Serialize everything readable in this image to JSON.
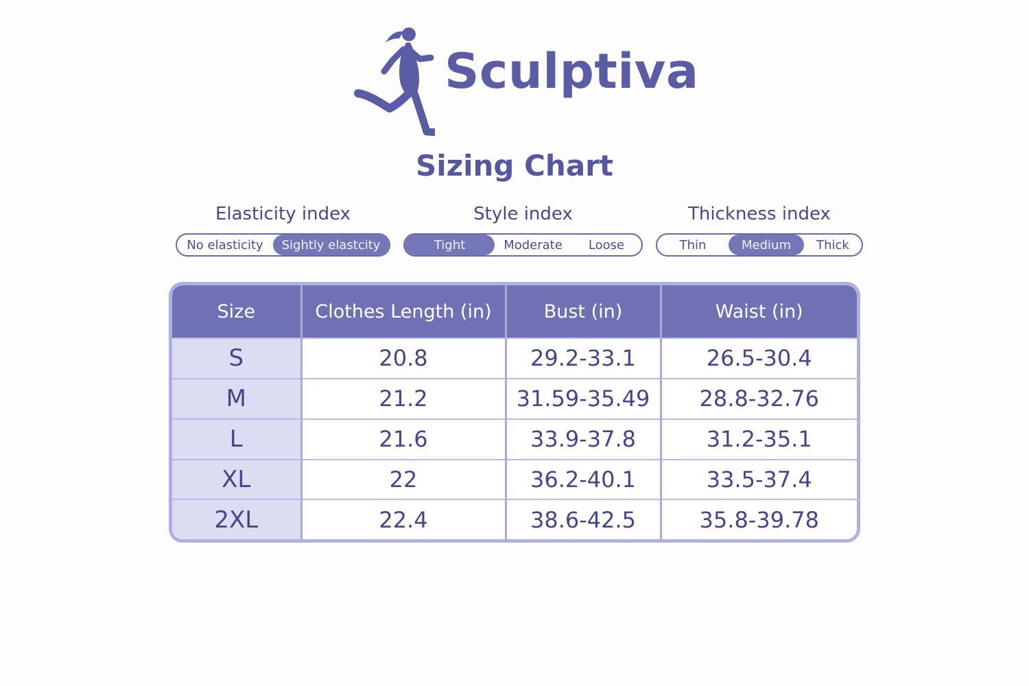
{
  "brand": {
    "name": "Sculptiva",
    "logo_icon": "running-woman-icon",
    "color": "#5a5ca6"
  },
  "chart_title": "Sizing Chart",
  "indices": [
    {
      "title": "Elasticity index",
      "options": [
        "No elasticity",
        "Sightly elastcity"
      ],
      "selected": "Sightly elastcity"
    },
    {
      "title": "Style index",
      "options": [
        "Tight",
        "Moderate",
        "Loose"
      ],
      "selected": "Tight"
    },
    {
      "title": "Thickness index",
      "options": [
        "Thin",
        "Medium",
        "Thick"
      ],
      "selected": "Medium"
    }
  ],
  "table": {
    "headers": [
      "Size",
      "Clothes Length (in)",
      "Bust (in)",
      "Waist (in)"
    ],
    "rows": [
      [
        "S",
        "20.8",
        "29.2-33.1",
        "26.5-30.4"
      ],
      [
        "M",
        "21.2",
        "31.59-35.49",
        "28.8-32.76"
      ],
      [
        "L",
        "21.6",
        "33.9-37.8",
        "31.2-35.1"
      ],
      [
        "XL",
        "22",
        "36.2-40.1",
        "33.5-37.4"
      ],
      [
        "2XL",
        "22.4",
        "38.6-42.5",
        "35.8-39.78"
      ]
    ]
  },
  "colors": {
    "header_bg": "#6f71b4",
    "selected_option": "#7476b8",
    "size_column_bg": "#dcdcf3",
    "table_border": "#aeb0e0"
  }
}
